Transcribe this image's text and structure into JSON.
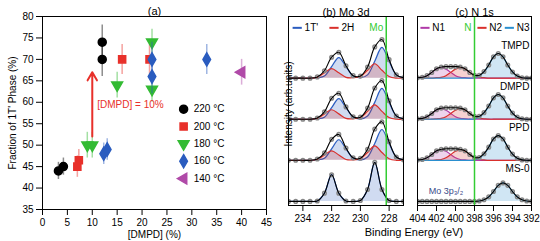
{
  "chart_data": [
    {
      "type": "scatter",
      "title": "(a)",
      "xlabel": "[DMPD] (%)",
      "ylabel": "Fraction of 1T' Phase (%)",
      "xlim": [
        0,
        45
      ],
      "xticks": [
        0,
        5,
        10,
        15,
        20,
        25,
        30,
        35,
        40,
        45
      ],
      "ylim": [
        35,
        80
      ],
      "yticks": [
        35,
        40,
        45,
        50,
        55,
        60,
        65,
        70,
        75,
        80
      ],
      "legend": "bottom-right",
      "series": [
        {
          "name": "220 °C",
          "color": "#000000",
          "marker": "circle",
          "x": [
            3.2,
            4.2,
            12,
            12
          ],
          "values": [
            44,
            45,
            74,
            70
          ],
          "errors": [
            2,
            2,
            4,
            4
          ]
        },
        {
          "name": "200 °C",
          "color": "#e8302a",
          "marker": "square",
          "x": [
            7,
            7.3,
            16,
            21.5
          ],
          "values": [
            45,
            46.5,
            70,
            70
          ],
          "errors": [
            2.5,
            2.5,
            3.5,
            3.5
          ]
        },
        {
          "name": "180 °C",
          "color": "#33bb33",
          "marker": "triangle-down",
          "x": [
            9,
            10,
            15,
            22,
            22
          ],
          "values": [
            50,
            50,
            64,
            74,
            63
          ],
          "errors": [
            3,
            3,
            3,
            3,
            3
          ]
        },
        {
          "name": "160 °C",
          "color": "#2a5cbf",
          "marker": "diamond",
          "x": [
            12.3,
            13,
            22,
            22,
            33
          ],
          "values": [
            48,
            49,
            70,
            66,
            70
          ],
          "errors": [
            2.5,
            2.5,
            4,
            4,
            3.5
          ]
        },
        {
          "name": "140 °C",
          "color": "#b04aa8",
          "marker": "triangle-left",
          "x": [
            40
          ],
          "values": [
            67
          ],
          "errors": [
            3
          ]
        }
      ],
      "annotations": [
        {
          "text": "[DMPD] = 10%",
          "x": 10,
          "y1": 52,
          "y2": 67,
          "color": "#e8302a"
        }
      ]
    },
    {
      "type": "line",
      "title": "(b) Mo 3d",
      "ylabel": "Intensity (arb.units)",
      "x": [
        235,
        234.5,
        234,
        233.5,
        233,
        232.5,
        232,
        231.5,
        231,
        230.5,
        230,
        229.5,
        229,
        228.5,
        228,
        227.5,
        227
      ],
      "xlim": [
        235,
        227
      ],
      "xticks": [
        234,
        232,
        230,
        228
      ],
      "ylim": [
        -0.1,
        4.5
      ],
      "tick_labels": "x",
      "legend": "top-left",
      "spectra": [
        {
          "color": "#888888",
          "marker": "circle",
          "values": [
            3,
            3,
            3,
            3,
            3.03,
            3.18,
            3.51,
            3.63,
            3.3,
            3.06,
            3.05,
            3.27,
            3.76,
            3.94,
            3.45,
            3.08,
            3.01
          ],
          "components": [
            {
              "name": "1T'",
              "color": "#2a5cbf",
              "values": [
                3,
                3,
                3,
                3,
                3.01,
                3.05,
                3.28,
                3.5,
                3.28,
                3.05,
                3.01,
                3.08,
                3.41,
                3.75,
                3.41,
                3.08,
                3.01
              ]
            },
            {
              "name": "2H",
              "color": "#d9302c",
              "values": [
                3,
                3,
                3,
                3,
                3.02,
                3.13,
                3.23,
                3.13,
                3.02,
                3.01,
                3.04,
                3.19,
                3.35,
                3.19,
                3.04,
                3,
                3
              ]
            }
          ]
        },
        {
          "color": "#888888",
          "marker": "circle",
          "values": [
            2,
            2,
            2,
            2,
            2.03,
            2.18,
            2.51,
            2.63,
            2.3,
            2.06,
            2.05,
            2.27,
            2.76,
            2.94,
            2.45,
            2.08,
            2.01
          ],
          "components": [
            {
              "name": "1T'",
              "color": "#2a5cbf",
              "values": [
                2,
                2,
                2,
                2,
                2.01,
                2.05,
                2.28,
                2.5,
                2.28,
                2.05,
                2.01,
                2.08,
                2.41,
                2.75,
                2.41,
                2.08,
                2.01
              ]
            },
            {
              "name": "2H",
              "color": "#d9302c",
              "values": [
                2,
                2,
                2,
                2,
                2.02,
                2.13,
                2.23,
                2.13,
                2.02,
                2.01,
                2.04,
                2.19,
                2.35,
                2.19,
                2.04,
                2,
                2
              ]
            }
          ]
        },
        {
          "color": "#888888",
          "marker": "circle",
          "values": [
            1,
            1,
            1,
            1,
            1.03,
            1.18,
            1.51,
            1.63,
            1.3,
            1.06,
            1.05,
            1.27,
            1.76,
            1.94,
            1.45,
            1.08,
            1.01
          ],
          "components": [
            {
              "name": "1T'",
              "color": "#2a5cbf",
              "values": [
                1,
                1,
                1,
                1,
                1.01,
                1.05,
                1.28,
                1.5,
                1.28,
                1.05,
                1.01,
                1.08,
                1.41,
                1.75,
                1.41,
                1.08,
                1.01
              ]
            },
            {
              "name": "2H",
              "color": "#d9302c",
              "values": [
                1,
                1,
                1,
                1,
                1.02,
                1.13,
                1.23,
                1.13,
                1.02,
                1.01,
                1.04,
                1.19,
                1.35,
                1.19,
                1.04,
                1,
                1
              ]
            }
          ]
        },
        {
          "color": "#888888",
          "marker": "circle",
          "values": [
            0,
            0,
            0,
            0,
            0.01,
            0.2,
            0.65,
            0.2,
            0.01,
            0,
            0.02,
            0.29,
            0.95,
            0.29,
            0.02,
            0,
            0
          ],
          "components": [
            {
              "name": "1T'",
              "color": "#2a5cbf",
              "values": [
                0,
                0,
                0,
                0,
                0.01,
                0.2,
                0.65,
                0.2,
                0.01,
                0,
                0.02,
                0.29,
                0.95,
                0.29,
                0.02,
                0,
                0
              ]
            }
          ]
        }
      ],
      "annotations": [
        {
          "text": "Mo",
          "x": 228.2,
          "color": "#33cc33"
        }
      ]
    },
    {
      "type": "line",
      "title": "(c) N 1s",
      "xlabel": "Binding Energy (eV)",
      "x": [
        404,
        403.5,
        403,
        402.5,
        402,
        401.5,
        401,
        400.5,
        400,
        399.5,
        399,
        398.5,
        398,
        397.5,
        397,
        396.5,
        396,
        395.5,
        395,
        394.5,
        394,
        393.5,
        393,
        392.5,
        392
      ],
      "xlim": [
        404,
        392
      ],
      "xticks": [
        404,
        402,
        400,
        398,
        396,
        394,
        392
      ],
      "ylim": [
        -0.1,
        4.5
      ],
      "tick_labels": "x",
      "legend": "top-left",
      "spectra": [
        {
          "name": "TMPD",
          "color": "#888888",
          "marker": "circle",
          "values": [
            3.01,
            3.02,
            3.06,
            3.14,
            3.23,
            3.27,
            3.28,
            3.28,
            3.28,
            3.27,
            3.23,
            3.14,
            3.07,
            3.07,
            3.16,
            3.32,
            3.52,
            3.6,
            3.52,
            3.32,
            3.15,
            3.05,
            3.01,
            3,
            3
          ],
          "components": [
            {
              "name": "N1",
              "color": "#b03aa8",
              "values": [
                3.01,
                3.02,
                3.06,
                3.14,
                3.22,
                3.25,
                3.22,
                3.14,
                3.06,
                3.02,
                3.01,
                3,
                3,
                3,
                3,
                3,
                3,
                3,
                3,
                3,
                3,
                3,
                3,
                3,
                3
              ]
            },
            {
              "name": "N2",
              "color": "#d9302c",
              "values": [
                3,
                3,
                3,
                3,
                3.01,
                3.02,
                3.06,
                3.14,
                3.22,
                3.25,
                3.22,
                3.14,
                3.06,
                3.02,
                3.01,
                3,
                3,
                3,
                3,
                3,
                3,
                3,
                3,
                3,
                3
              ]
            },
            {
              "name": "N3",
              "color": "#2a8fcf",
              "values": [
                3,
                3,
                3,
                3,
                3,
                3,
                3,
                3,
                3,
                3,
                3,
                3,
                3.01,
                3.05,
                3.15,
                3.32,
                3.52,
                3.6,
                3.52,
                3.32,
                3.15,
                3.05,
                3.01,
                3,
                3
              ]
            }
          ]
        },
        {
          "name": "DMPD",
          "color": "#888888",
          "marker": "circle",
          "values": [
            2.01,
            2.02,
            2.06,
            2.14,
            2.23,
            2.27,
            2.28,
            2.28,
            2.28,
            2.27,
            2.23,
            2.14,
            2.07,
            2.07,
            2.16,
            2.32,
            2.52,
            2.6,
            2.52,
            2.32,
            2.15,
            2.05,
            2.01,
            2,
            2
          ],
          "components": [
            {
              "name": "N1",
              "color": "#b03aa8",
              "values": [
                2.01,
                2.02,
                2.06,
                2.14,
                2.22,
                2.25,
                2.22,
                2.14,
                2.06,
                2.02,
                2.01,
                2,
                2,
                2,
                2,
                2,
                2,
                2,
                2,
                2,
                2,
                2,
                2,
                2,
                2
              ]
            },
            {
              "name": "N2",
              "color": "#d9302c",
              "values": [
                2,
                2,
                2,
                2,
                2.01,
                2.02,
                2.06,
                2.14,
                2.22,
                2.25,
                2.22,
                2.14,
                2.06,
                2.02,
                2.01,
                2,
                2,
                2,
                2,
                2,
                2,
                2,
                2,
                2,
                2
              ]
            },
            {
              "name": "N3",
              "color": "#2a8fcf",
              "values": [
                2,
                2,
                2,
                2,
                2,
                2,
                2,
                2,
                2,
                2,
                2,
                2,
                2.01,
                2.05,
                2.15,
                2.32,
                2.52,
                2.6,
                2.52,
                2.32,
                2.15,
                2.05,
                2.01,
                2,
                2
              ]
            }
          ]
        },
        {
          "name": "PPD",
          "color": "#888888",
          "marker": "circle",
          "values": [
            1.01,
            1.02,
            1.06,
            1.14,
            1.23,
            1.27,
            1.28,
            1.28,
            1.28,
            1.27,
            1.23,
            1.14,
            1.07,
            1.07,
            1.16,
            1.32,
            1.52,
            1.6,
            1.52,
            1.32,
            1.15,
            1.05,
            1.01,
            1,
            1
          ],
          "components": [
            {
              "name": "N1",
              "color": "#b03aa8",
              "values": [
                1.01,
                1.02,
                1.06,
                1.14,
                1.22,
                1.25,
                1.22,
                1.14,
                1.06,
                1.02,
                1.01,
                1,
                1,
                1,
                1,
                1,
                1,
                1,
                1,
                1,
                1,
                1,
                1,
                1,
                1
              ]
            },
            {
              "name": "N2",
              "color": "#d9302c",
              "values": [
                1,
                1,
                1,
                1,
                1.01,
                1.02,
                1.06,
                1.14,
                1.22,
                1.25,
                1.22,
                1.14,
                1.06,
                1.02,
                1.01,
                1,
                1,
                1,
                1,
                1,
                1,
                1,
                1,
                1,
                1
              ]
            },
            {
              "name": "N3",
              "color": "#2a8fcf",
              "values": [
                1,
                1,
                1,
                1,
                1,
                1,
                1,
                1,
                1,
                1,
                1,
                1,
                1.01,
                1.05,
                1.15,
                1.32,
                1.52,
                1.6,
                1.52,
                1.32,
                1.15,
                1.05,
                1.01,
                1,
                1
              ]
            }
          ]
        },
        {
          "name": "MS-0",
          "color": "#888888",
          "marker": "circle",
          "values": [
            0,
            0,
            0,
            0,
            0,
            0,
            0,
            0,
            0,
            0,
            0,
            0,
            0,
            0.01,
            0.04,
            0.11,
            0.24,
            0.39,
            0.45,
            0.39,
            0.24,
            0.11,
            0.04,
            0.01,
            0
          ],
          "components": [
            {
              "name": "N3",
              "color": "#2a8fcf",
              "values": [
                0,
                0,
                0,
                0,
                0,
                0,
                0,
                0,
                0,
                0,
                0,
                0,
                0,
                0.01,
                0.04,
                0.11,
                0.24,
                0.39,
                0.45,
                0.39,
                0.24,
                0.11,
                0.04,
                0.01,
                0
              ]
            }
          ]
        }
      ],
      "annotations": [
        {
          "text": "N",
          "x": 398,
          "color": "#33cc33"
        },
        {
          "text": "Mo 3p₃/₂",
          "x": 401,
          "y": 0.25,
          "color": "#3a4a8a"
        }
      ]
    }
  ]
}
